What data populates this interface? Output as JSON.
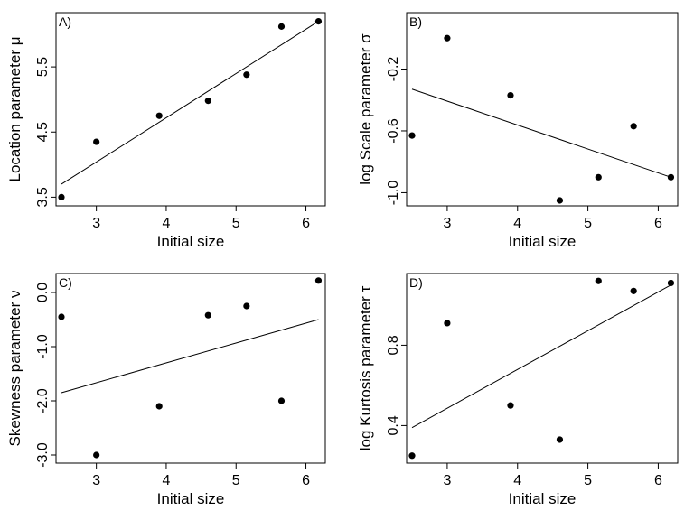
{
  "chart_data": [
    {
      "type": "scatter",
      "panel_label": "A)",
      "xlabel": "Initial size",
      "ylabel": "Location parameter μ",
      "xlim": [
        2.5,
        6.2
      ],
      "ylim": [
        3.45,
        6.25
      ],
      "xticks": [
        3,
        4,
        5,
        6
      ],
      "yticks": [
        3.5,
        4.5,
        5.5
      ],
      "ytick_labels": [
        "3.5",
        "4.5",
        "5.5"
      ],
      "points": [
        {
          "x": 2.5,
          "y": 3.5
        },
        {
          "x": 3.0,
          "y": 4.35
        },
        {
          "x": 3.9,
          "y": 4.75
        },
        {
          "x": 4.6,
          "y": 4.98
        },
        {
          "x": 5.15,
          "y": 5.38
        },
        {
          "x": 5.65,
          "y": 6.12
        },
        {
          "x": 6.18,
          "y": 6.2
        }
      ],
      "fit_line": [
        {
          "x": 2.5,
          "y": 3.7
        },
        {
          "x": 6.18,
          "y": 6.2
        }
      ]
    },
    {
      "type": "scatter",
      "panel_label": "B)",
      "xlabel": "Initial size",
      "ylabel": "log Scale parameter σ",
      "xlim": [
        2.5,
        6.2
      ],
      "ylim": [
        -1.05,
        0.13
      ],
      "xticks": [
        3,
        4,
        5,
        6
      ],
      "yticks": [
        -1.0,
        -0.6,
        -0.2
      ],
      "ytick_labels": [
        "-1.0",
        "-0.6",
        "-0.2"
      ],
      "points": [
        {
          "x": 2.5,
          "y": -0.63
        },
        {
          "x": 3.0,
          "y": 0.0
        },
        {
          "x": 3.9,
          "y": -0.37
        },
        {
          "x": 4.6,
          "y": -1.05
        },
        {
          "x": 5.15,
          "y": -0.9
        },
        {
          "x": 5.65,
          "y": -0.57
        },
        {
          "x": 6.18,
          "y": -0.9
        }
      ],
      "fit_line": [
        {
          "x": 2.5,
          "y": -0.33
        },
        {
          "x": 6.18,
          "y": -0.9
        }
      ]
    },
    {
      "type": "scatter",
      "panel_label": "C)",
      "xlabel": "Initial size",
      "ylabel": "Skewness parameter ν",
      "xlim": [
        2.5,
        6.2
      ],
      "ylim": [
        -3.05,
        0.25
      ],
      "xticks": [
        3,
        4,
        5,
        6
      ],
      "yticks": [
        -3.0,
        -2.0,
        -1.0,
        0.0
      ],
      "ytick_labels": [
        "-3.0",
        "-2.0",
        "-1.0",
        "0.0"
      ],
      "points": [
        {
          "x": 2.5,
          "y": -0.45
        },
        {
          "x": 3.0,
          "y": -3.0
        },
        {
          "x": 3.9,
          "y": -2.1
        },
        {
          "x": 4.6,
          "y": -0.42
        },
        {
          "x": 5.15,
          "y": -0.25
        },
        {
          "x": 5.65,
          "y": -2.0
        },
        {
          "x": 6.18,
          "y": 0.22
        }
      ],
      "fit_line": [
        {
          "x": 2.5,
          "y": -1.85
        },
        {
          "x": 6.18,
          "y": -0.5
        }
      ]
    },
    {
      "type": "scatter",
      "panel_label": "D)",
      "xlabel": "Initial size",
      "ylabel": "log Kurtosis parameter τ",
      "xlim": [
        2.5,
        6.2
      ],
      "ylim": [
        0.24,
        1.13
      ],
      "xticks": [
        3,
        4,
        5,
        6
      ],
      "yticks": [
        0.4,
        0.8
      ],
      "ytick_labels": [
        "0.4",
        "0.8"
      ],
      "points": [
        {
          "x": 2.5,
          "y": 0.25
        },
        {
          "x": 3.0,
          "y": 0.91
        },
        {
          "x": 3.9,
          "y": 0.5
        },
        {
          "x": 4.6,
          "y": 0.33
        },
        {
          "x": 5.15,
          "y": 1.12
        },
        {
          "x": 5.65,
          "y": 1.07
        },
        {
          "x": 6.18,
          "y": 1.11
        }
      ],
      "fit_line": [
        {
          "x": 2.5,
          "y": 0.39
        },
        {
          "x": 6.18,
          "y": 1.1
        }
      ]
    }
  ]
}
